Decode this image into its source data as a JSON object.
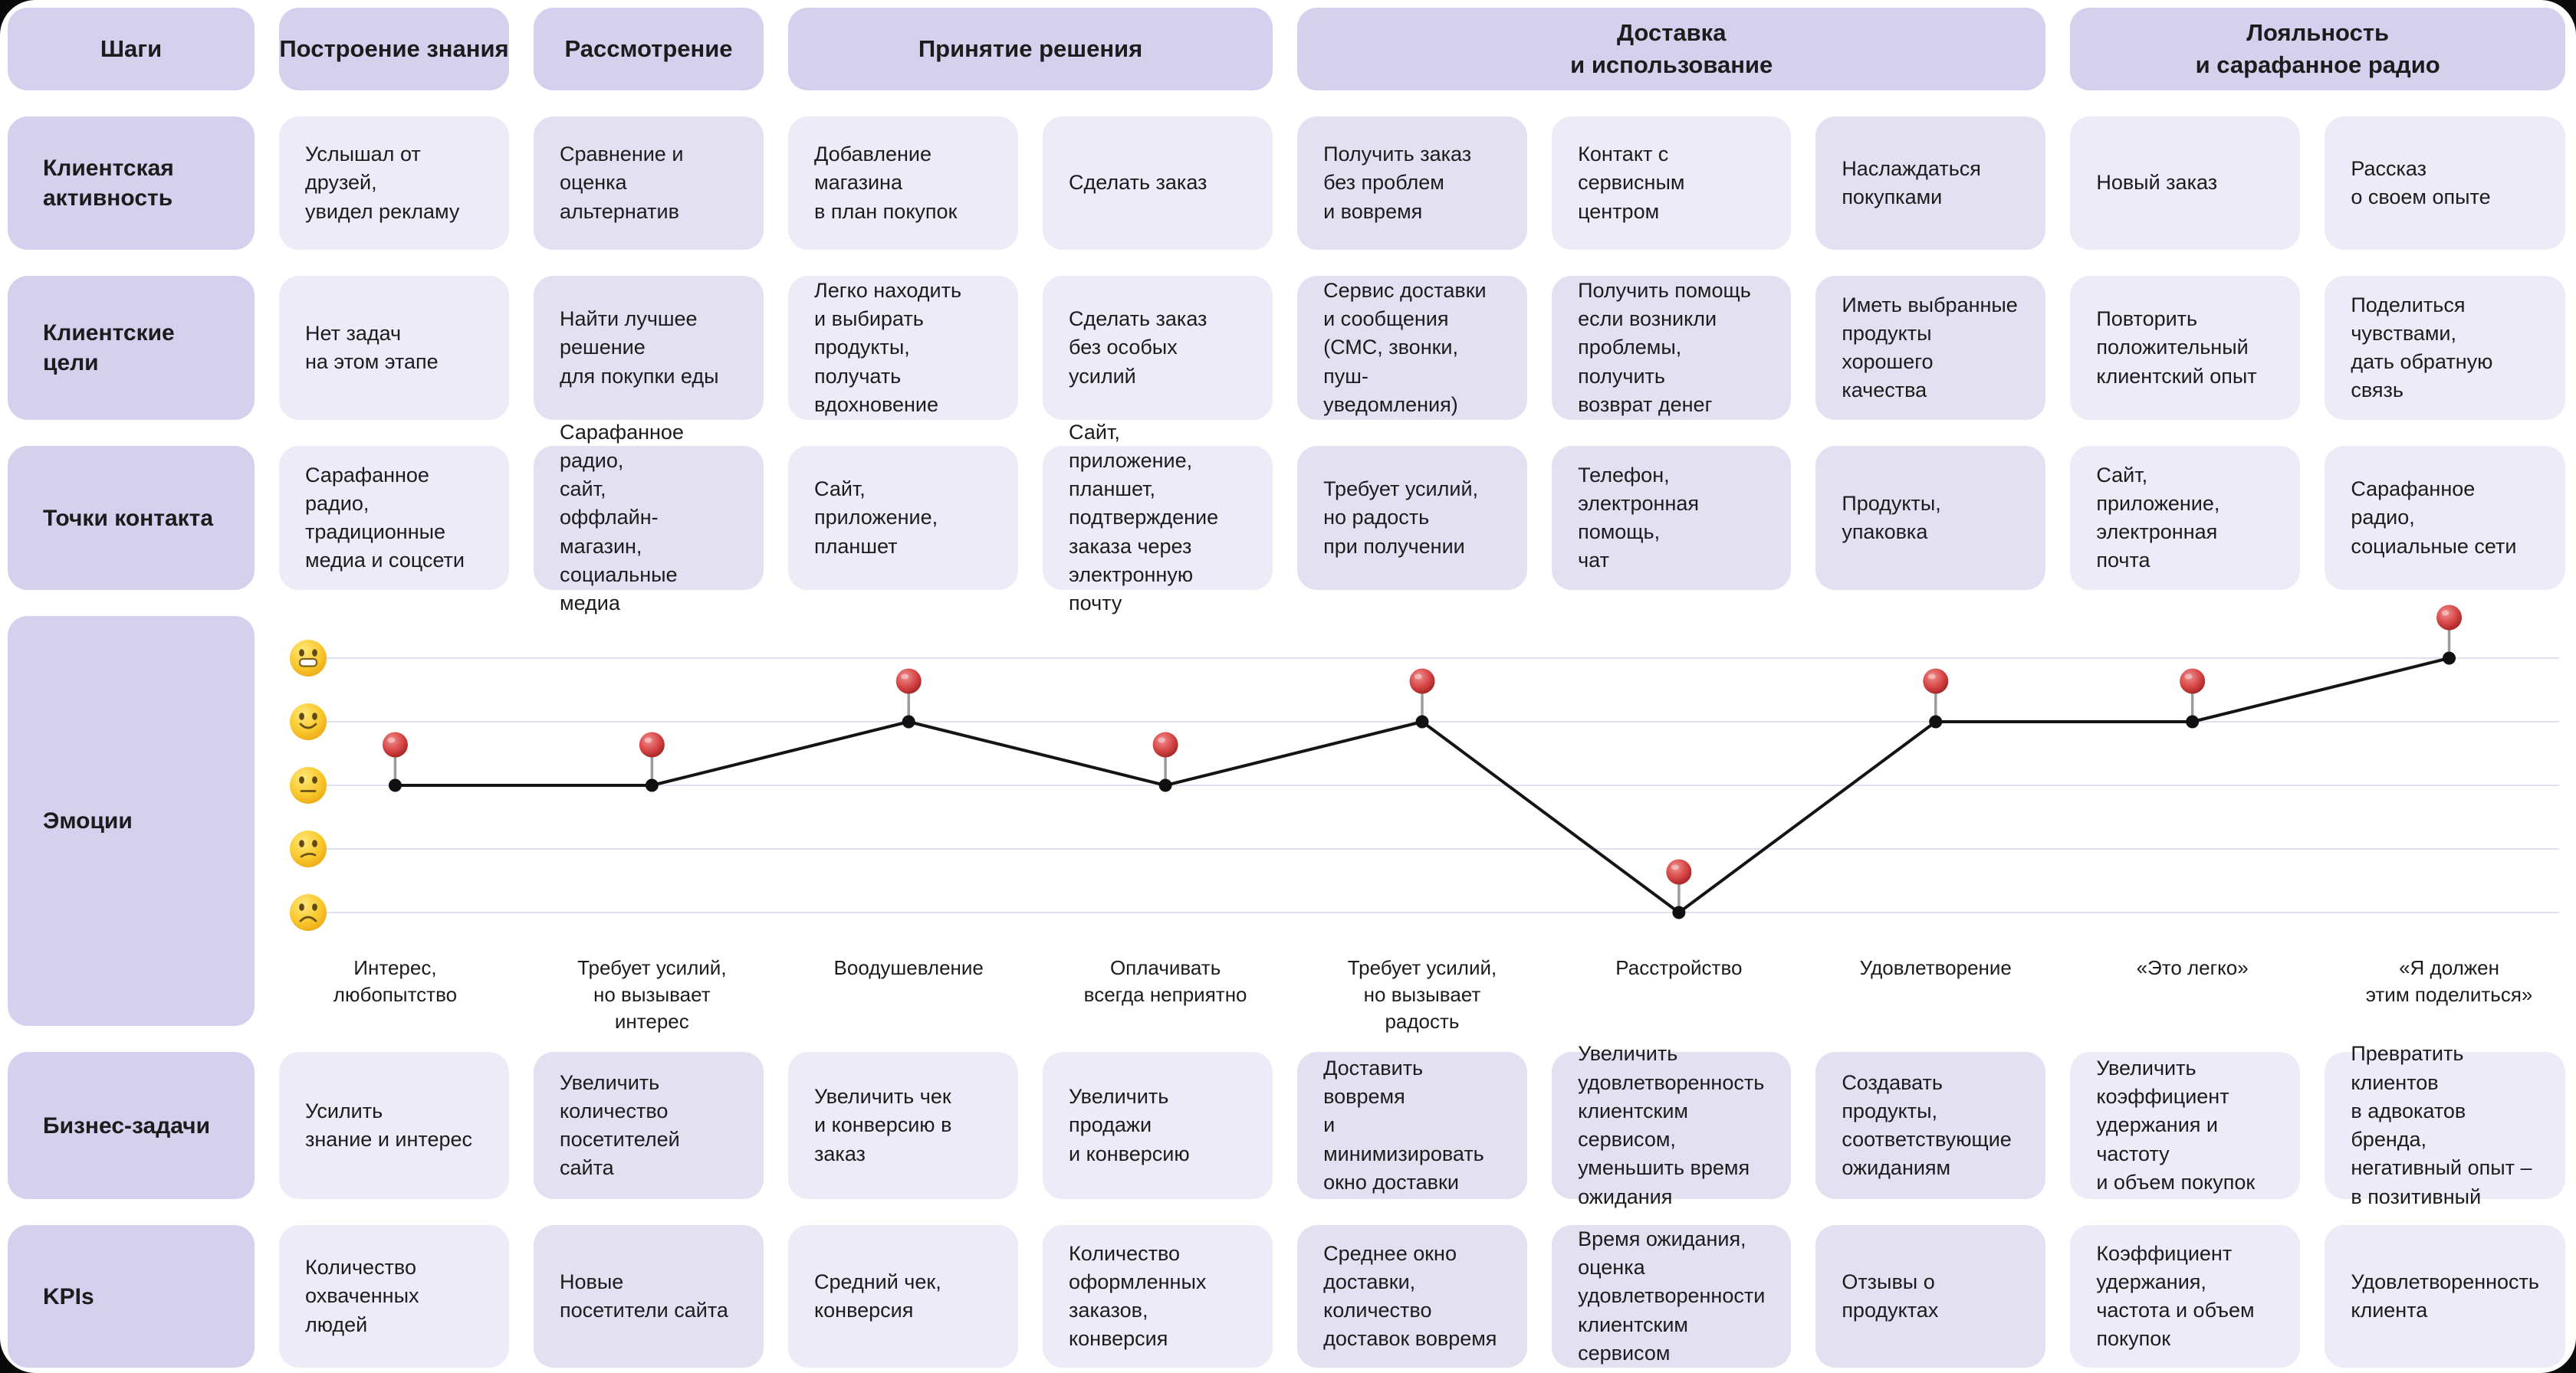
{
  "palette": {
    "page_bg": "#0a0a0a",
    "canvas_bg": "#ffffff",
    "header_bg": "#d6d0ef",
    "cell_light": "#edebf7",
    "cell_dark": "#e3e0f1",
    "text": "#1c1c1c",
    "emotion_line": "#141414",
    "pin_red": "#cc3b3b",
    "pin_stem": "#9b9b9b",
    "grid_line": "#e2dff0",
    "emoji_yellow": "#f9c82d"
  },
  "header": {
    "steps_label": "Шаги",
    "stages": [
      {
        "label": "Построение знания",
        "span": 1
      },
      {
        "label": "Рассмотрение",
        "span": 1
      },
      {
        "label": "Принятие решения",
        "span": 2
      },
      {
        "label": "Доставка\nи использование",
        "span": 3
      },
      {
        "label": "Лояльность\nи сарафанное радио",
        "span": 2
      }
    ]
  },
  "rows": [
    {
      "id": "activity",
      "label": "Клиентская\nактивность",
      "cells": [
        {
          "text": "Услышал от друзей,\nувидел рекламу",
          "tone": "light"
        },
        {
          "text": "Сравнение и оценка\nальтернатив",
          "tone": "dark"
        },
        {
          "text": "Добавление магазина\nв план покупок",
          "tone": "light"
        },
        {
          "text": "Сделать заказ",
          "tone": "light"
        },
        {
          "text": "Получить заказ\nбез проблем\nи вовремя",
          "tone": "dark"
        },
        {
          "text": "Контакт с сервисным\nцентром",
          "tone": "light"
        },
        {
          "text": "Наслаждаться\nпокупками",
          "tone": "dark"
        },
        {
          "text": "Новый заказ",
          "tone": "light"
        },
        {
          "text": "Рассказ\nо своем опыте",
          "tone": "light"
        }
      ]
    },
    {
      "id": "goals",
      "label": "Клиентские\nцели",
      "cells": [
        {
          "text": "Нет задач\nна этом этапе",
          "tone": "light"
        },
        {
          "text": "Найти лучшее\nрешение\nдля покупки еды",
          "tone": "dark"
        },
        {
          "text": "Легко находить\nи выбирать продукты,\nполучать\nвдохновение",
          "tone": "light"
        },
        {
          "text": "Сделать заказ\nбез особых усилий",
          "tone": "light"
        },
        {
          "text": "Сервис доставки\nи сообщения\n(СМС, звонки,\nпуш-уведомления)",
          "tone": "dark"
        },
        {
          "text": "Получить помощь\nесли возникли\nпроблемы, получить\nвозврат денег",
          "tone": "dark"
        },
        {
          "text": "Иметь выбранные\nпродукты хорошего\nкачества",
          "tone": "dark"
        },
        {
          "text": "Повторить\nположительный\nклиентский опыт",
          "tone": "light"
        },
        {
          "text": "Поделиться\nчувствами,\nдать обратную связь",
          "tone": "light"
        }
      ]
    },
    {
      "id": "touchpoints",
      "label": "Точки контакта",
      "cells": [
        {
          "text": "Сарафанное радио,\nтрадиционные\nмедиа и соцсети",
          "tone": "light"
        },
        {
          "text": "Сарафанное радио,\nсайт,\nоффлайн-магазин,\nсоциальные медиа",
          "tone": "dark"
        },
        {
          "text": "Сайт,\nприложение,\nпланшет",
          "tone": "light"
        },
        {
          "text": "Сайт, приложение,\nпланшет,\nподтверждение\nзаказа через\nэлектронную почту",
          "tone": "light"
        },
        {
          "text": "Требует усилий,\nно радость\nпри получении",
          "tone": "dark"
        },
        {
          "text": "Телефон,\nэлектронная помощь,\nчат",
          "tone": "dark"
        },
        {
          "text": "Продукты, упаковка",
          "tone": "dark"
        },
        {
          "text": "Сайт, приложение,\nэлектронная почта",
          "tone": "light"
        },
        {
          "text": "Сарафанное радио,\nсоциальные сети",
          "tone": "light"
        }
      ]
    },
    {
      "id": "emotions",
      "type": "chart",
      "label": "Эмоции"
    },
    {
      "id": "business",
      "label": "Бизнес-задачи",
      "cells": [
        {
          "text": "Усилить\nзнание и интерес",
          "tone": "light"
        },
        {
          "text": "Увеличить\nколичество\nпосетителей сайта",
          "tone": "dark"
        },
        {
          "text": "Увеличить чек\nи конверсию в заказ",
          "tone": "light"
        },
        {
          "text": "Увеличить продажи\nи конверсию",
          "tone": "light"
        },
        {
          "text": "Доставить вовремя\nи минимизировать\nокно доставки",
          "tone": "dark"
        },
        {
          "text": "Увеличить\nудовлетворенность\nклиентским сервисом,\nуменьшить время\nожидания",
          "tone": "dark"
        },
        {
          "text": "Создавать продукты,\nсоответствующие\nожиданиям",
          "tone": "dark"
        },
        {
          "text": "Увеличить\nкоэффициент\nудержания и частоту\nи объем покупок",
          "tone": "light"
        },
        {
          "text": "Превратить клиентов\nв адвокатов бренда,\nнегативный опыт –\nв позитивный",
          "tone": "light"
        }
      ]
    },
    {
      "id": "kpis",
      "label": "KPIs",
      "cells": [
        {
          "text": "Количество\nохваченных людей",
          "tone": "light"
        },
        {
          "text": "Новые\nпосетители сайта",
          "tone": "dark"
        },
        {
          "text": "Средний чек,\nконверсия",
          "tone": "light"
        },
        {
          "text": "Количество\nоформленных\nзаказов, конверсия",
          "tone": "light"
        },
        {
          "text": "Среднее окно\nдоставки, количество\nдоставок вовремя",
          "tone": "dark"
        },
        {
          "text": "Время ожидания,\nоценка\nудовлетворенности\nклиентским сервисом",
          "tone": "dark"
        },
        {
          "text": "Отзывы о продуктах",
          "tone": "dark"
        },
        {
          "text": "Коэффициент\nудержания,\nчастота и объем\nпокупок",
          "tone": "light"
        },
        {
          "text": "Удовлетворенность\nклиента",
          "tone": "light"
        }
      ]
    }
  ],
  "chart_data": {
    "type": "line",
    "title": "Эмоции",
    "categories": [
      "Интерес,\nлюбопытство",
      "Требует усилий,\nно вызывает\nинтерес",
      "Воодушевление",
      "Оплачивать\nвсегда неприятно",
      "Требует усилий,\nно вызывает\nрадость",
      "Расстройство",
      "Удовлетворение",
      "«Это легко»",
      "«Я должен\nэтим поделиться»"
    ],
    "values": [
      3,
      3,
      4,
      3,
      4,
      1,
      4,
      4,
      5
    ],
    "ylim": [
      1,
      5
    ],
    "grid": true,
    "marker": "red-pin",
    "scale_icons_top_to_bottom": [
      "grinning-face-icon",
      "slightly-smiling-face-icon",
      "neutral-face-icon",
      "confused-face-icon",
      "frowning-face-icon"
    ]
  }
}
